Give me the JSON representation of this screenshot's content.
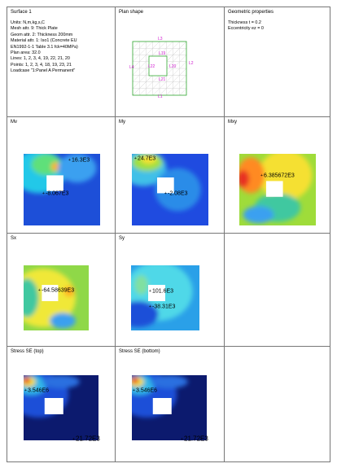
{
  "rows": [
    [
      {
        "title": "Surface 1",
        "lines": [
          "Units: N,m,kg,s,C",
          "Mesh attr. 9: Thick Plate",
          "Geom attr. 2: Thickness 200mm",
          "Material attr. 1: Iso1 (Concrete EU",
          "EN1992-1-1 Table 3.1 fck=40MPa)",
          "Plan area: 32.0",
          "Lines: 1, 2, 3, 4, 19, 22, 21, 20",
          "Points: 1, 2, 3, 4, 18, 19, 23, 21",
          "Loadcase \"1:Panel A Permanent\""
        ]
      },
      {
        "title": "Plan shape",
        "labels": [
          "L1",
          "L2",
          "L3",
          "L4",
          "L19",
          "L20",
          "L21",
          "L22"
        ]
      },
      {
        "title": "Geometric properties",
        "lines": [
          "Thickness t = 0.2",
          "Eccentricity ez = 0"
        ]
      }
    ],
    [
      {
        "title": "Mv",
        "labels": [
          "16.3E3",
          "-8.067E3"
        ]
      },
      {
        "title": "My",
        "labels": [
          "24.7E3",
          "-2.08E3"
        ]
      },
      {
        "title": "Mxy",
        "labels": [
          "6.385672E3"
        ]
      }
    ],
    [
      {
        "title": "Sx",
        "labels": [
          "-64.58639E3"
        ]
      },
      {
        "title": "Sy",
        "labels": [
          "101.6E3",
          "-38.31E3"
        ]
      }
    ],
    [
      {
        "title": "Stress SE (top)",
        "labels": [
          "3.546E6",
          "21.72E3"
        ]
      },
      {
        "title": "Stress SE (bottom)",
        "labels": [
          "3.546E6",
          "21.72E3"
        ]
      }
    ]
  ]
}
